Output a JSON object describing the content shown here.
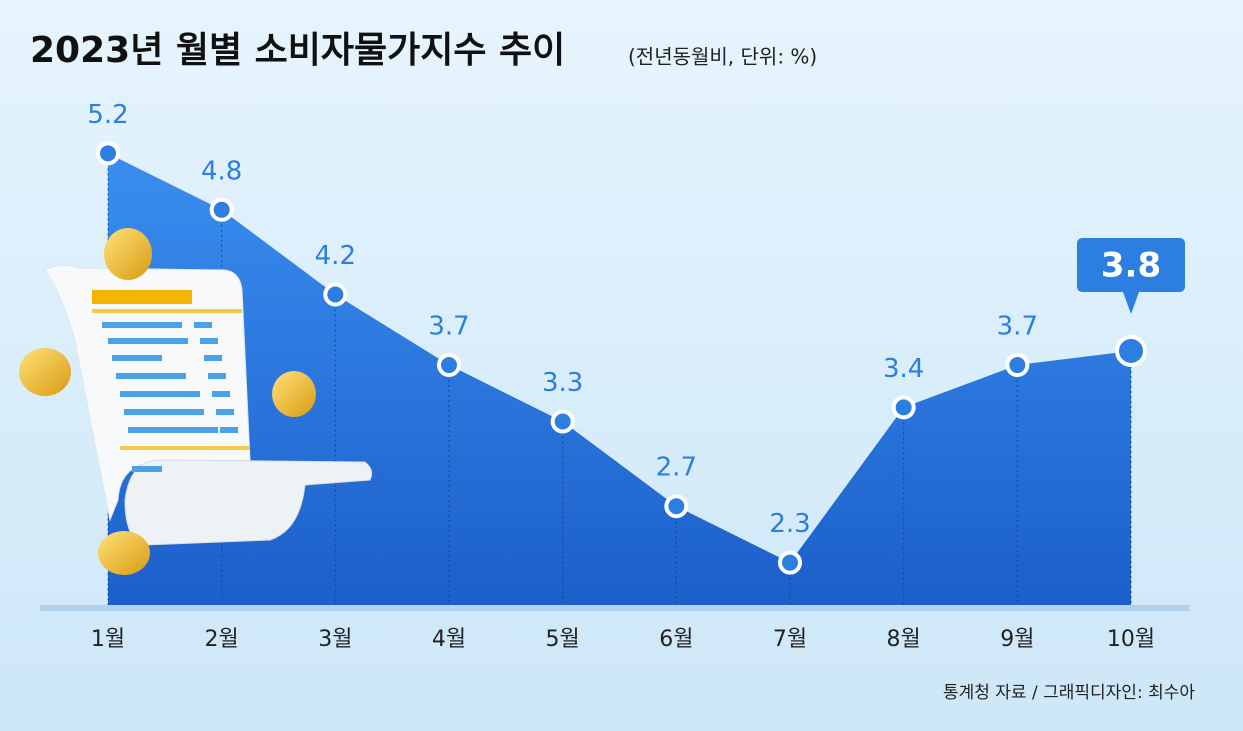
{
  "chart_data": {
    "type": "area",
    "title": "2023년 월별 소비자물가지수 추이",
    "subtitle": "(전년동월비, 단위: %)",
    "source": "통계청 자료 / 그래픽디자인: 최수아",
    "categories": [
      "1월",
      "2월",
      "3월",
      "4월",
      "5월",
      "6월",
      "7월",
      "8월",
      "9월",
      "10월"
    ],
    "values": [
      5.2,
      4.8,
      4.2,
      3.7,
      3.3,
      2.7,
      2.3,
      3.4,
      3.7,
      3.8
    ],
    "color": "#2c7ee0",
    "ylim": [
      2,
      5.5
    ]
  }
}
